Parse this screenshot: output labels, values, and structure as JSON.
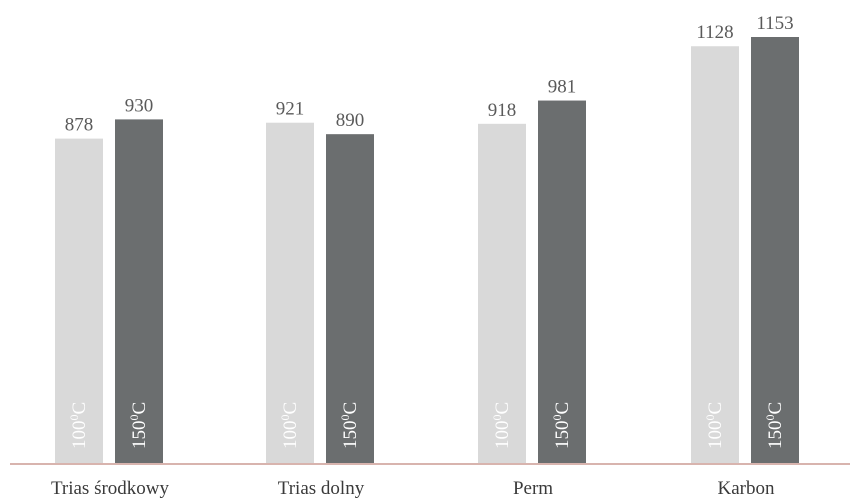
{
  "chart_data": {
    "type": "bar",
    "title": "",
    "xlabel": "",
    "ylabel": "",
    "categories": [
      "Trias środkowy",
      "Trias dolny",
      "Perm",
      "Karbon"
    ],
    "series": [
      {
        "name": "100°C",
        "label_main": "100",
        "label_sup": "0",
        "label_unit": "C",
        "color": "#d9d9d9",
        "values": [
          878,
          921,
          918,
          1128
        ]
      },
      {
        "name": "150°C",
        "label_main": "150",
        "label_sup": "0",
        "label_unit": "C",
        "color": "#6b6e6f",
        "values": [
          930,
          890,
          981,
          1153
        ]
      }
    ],
    "ylim": [
      0,
      1153
    ],
    "grid": false,
    "legend": "none",
    "axis_color": "#b06a5c"
  }
}
